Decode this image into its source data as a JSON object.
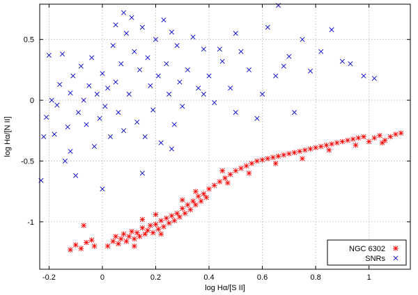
{
  "chart_data": {
    "type": "scatter",
    "xlabel": "log Hα/[S II]",
    "ylabel": "log Hα/[N II]",
    "xlim": [
      -0.235,
      1.155
    ],
    "ylim": [
      -1.39,
      0.79
    ],
    "x_ticks": [
      -0.2,
      0,
      0.2,
      0.4,
      0.6,
      0.8,
      1
    ],
    "x_tick_labels": [
      "-0.2",
      "0",
      "0.2",
      "0.4",
      "0.6",
      "0.8",
      "1"
    ],
    "y_ticks": [
      0.5,
      0,
      -0.5,
      -1
    ],
    "y_tick_labels": [
      "0.5",
      "0",
      "-0.5",
      "-1"
    ],
    "grid": true,
    "legend_position": "bottom-right",
    "series": [
      {
        "name": "NGC 6302",
        "marker": "asterisk",
        "color": "#ff0000",
        "points": [
          [
            -0.12,
            -1.23
          ],
          [
            -0.1,
            -1.19
          ],
          [
            -0.08,
            -1.22
          ],
          [
            -0.06,
            -1.17
          ],
          [
            -0.04,
            -1.15
          ],
          [
            -0.03,
            -1.2
          ],
          [
            -0.07,
            -1.03
          ],
          [
            0.02,
            -1.2
          ],
          [
            0.04,
            -1.16
          ],
          [
            0.05,
            -1.12
          ],
          [
            0.06,
            -1.18
          ],
          [
            0.07,
            -1.14
          ],
          [
            0.08,
            -1.1
          ],
          [
            0.09,
            -1.16
          ],
          [
            0.1,
            -1.12
          ],
          [
            0.11,
            -1.08
          ],
          [
            0.12,
            -1.14
          ],
          [
            0.13,
            -1.09
          ],
          [
            0.14,
            -1.12
          ],
          [
            0.15,
            -1.05
          ],
          [
            0.16,
            -1.1
          ],
          [
            0.17,
            -1.07
          ],
          [
            0.18,
            -1.03
          ],
          [
            0.19,
            -1.09
          ],
          [
            0.2,
            -1.02
          ],
          [
            0.21,
            -1.06
          ],
          [
            0.22,
            -0.99
          ],
          [
            0.23,
            -1.04
          ],
          [
            0.24,
            -0.97
          ],
          [
            0.25,
            -1.01
          ],
          [
            0.26,
            -0.95
          ],
          [
            0.27,
            -0.99
          ],
          [
            0.28,
            -0.93
          ],
          [
            0.29,
            -0.96
          ],
          [
            0.3,
            -0.89
          ],
          [
            0.31,
            -0.93
          ],
          [
            0.32,
            -0.86
          ],
          [
            0.33,
            -0.9
          ],
          [
            0.34,
            -0.83
          ],
          [
            0.35,
            -0.86
          ],
          [
            0.36,
            -0.79
          ],
          [
            0.37,
            -0.83
          ],
          [
            0.38,
            -0.77
          ],
          [
            0.39,
            -0.8
          ],
          [
            0.4,
            -0.73
          ],
          [
            0.42,
            -0.7
          ],
          [
            0.44,
            -0.67
          ],
          [
            0.46,
            -0.64
          ],
          [
            0.48,
            -0.61
          ],
          [
            0.5,
            -0.58
          ],
          [
            0.52,
            -0.56
          ],
          [
            0.54,
            -0.54
          ],
          [
            0.56,
            -0.52
          ],
          [
            0.58,
            -0.5
          ],
          [
            0.6,
            -0.49
          ],
          [
            0.62,
            -0.48
          ],
          [
            0.64,
            -0.47
          ],
          [
            0.66,
            -0.46
          ],
          [
            0.68,
            -0.45
          ],
          [
            0.7,
            -0.44
          ],
          [
            0.72,
            -0.43
          ],
          [
            0.74,
            -0.42
          ],
          [
            0.76,
            -0.41
          ],
          [
            0.78,
            -0.4
          ],
          [
            0.8,
            -0.39
          ],
          [
            0.82,
            -0.38
          ],
          [
            0.84,
            -0.37
          ],
          [
            0.86,
            -0.36
          ],
          [
            0.88,
            -0.35
          ],
          [
            0.9,
            -0.34
          ],
          [
            0.92,
            -0.33
          ],
          [
            0.94,
            -0.32
          ],
          [
            0.96,
            -0.31
          ],
          [
            0.98,
            -0.3
          ],
          [
            1.0,
            -0.34
          ],
          [
            1.02,
            -0.31
          ],
          [
            1.04,
            -0.29
          ],
          [
            1.06,
            -0.33
          ],
          [
            1.08,
            -0.3
          ],
          [
            1.1,
            -0.28
          ],
          [
            1.12,
            -0.27
          ],
          [
            0.47,
            -0.68
          ],
          [
            0.3,
            -0.82
          ],
          [
            0.22,
            -1.1
          ],
          [
            0.2,
            -0.94
          ],
          [
            0.15,
            -0.98
          ],
          [
            0.35,
            -0.75
          ],
          [
            0.45,
            -0.58
          ],
          [
            0.55,
            -0.6
          ],
          [
            0.65,
            -0.52
          ],
          [
            0.75,
            -0.48
          ],
          [
            0.85,
            -0.41
          ],
          [
            0.95,
            -0.37
          ],
          [
            1.05,
            -0.35
          ],
          [
            0.12,
            -1.2
          ]
        ]
      },
      {
        "name": "SNRs",
        "marker": "x",
        "color": "#0000cc",
        "points": [
          [
            -0.23,
            -0.66
          ],
          [
            -0.22,
            -0.3
          ],
          [
            -0.21,
            -0.14
          ],
          [
            -0.2,
            0.37
          ],
          [
            -0.19,
            0.0
          ],
          [
            -0.18,
            -0.28
          ],
          [
            -0.17,
            -0.04
          ],
          [
            -0.16,
            0.13
          ],
          [
            -0.15,
            0.38
          ],
          [
            -0.14,
            -0.5
          ],
          [
            -0.13,
            -0.22
          ],
          [
            -0.12,
            0.06
          ],
          [
            -0.11,
            0.2
          ],
          [
            -0.1,
            -0.62
          ],
          [
            -0.09,
            -0.1
          ],
          [
            -0.08,
            0.28
          ],
          [
            -0.07,
            0.0
          ],
          [
            -0.06,
            -0.2
          ],
          [
            -0.05,
            0.12
          ],
          [
            -0.04,
            0.35
          ],
          [
            -0.03,
            -0.38
          ],
          [
            -0.02,
            0.05
          ],
          [
            -0.01,
            -0.15
          ],
          [
            0.0,
            0.22
          ],
          [
            0.01,
            -0.05
          ],
          [
            0.02,
            0.1
          ],
          [
            0.03,
            -0.3
          ],
          [
            0.04,
            0.45
          ],
          [
            0.05,
            0.15
          ],
          [
            0.06,
            -0.1
          ],
          [
            0.07,
            0.3
          ],
          [
            0.08,
            -0.25
          ],
          [
            0.09,
            0.55
          ],
          [
            0.1,
            0.05
          ],
          [
            0.11,
            0.68
          ],
          [
            0.12,
            0.4
          ],
          [
            0.13,
            -0.18
          ],
          [
            0.14,
            0.25
          ],
          [
            0.15,
            0.6
          ],
          [
            0.16,
            -0.3
          ],
          [
            0.17,
            0.35
          ],
          [
            0.18,
            0.12
          ],
          [
            0.19,
            -0.08
          ],
          [
            0.2,
            0.5
          ],
          [
            0.21,
            0.2
          ],
          [
            0.22,
            -0.35
          ],
          [
            0.23,
            0.66
          ],
          [
            0.24,
            0.3
          ],
          [
            0.25,
            0.05
          ],
          [
            0.26,
            0.56
          ],
          [
            0.27,
            -0.2
          ],
          [
            0.28,
            0.45
          ],
          [
            0.29,
            0.15
          ],
          [
            0.3,
            -0.05
          ],
          [
            0.32,
            0.25
          ],
          [
            0.34,
            0.52
          ],
          [
            0.36,
            0.1
          ],
          [
            0.38,
            0.42
          ],
          [
            0.4,
            0.2
          ],
          [
            0.42,
            -0.02
          ],
          [
            0.45,
            0.32
          ],
          [
            0.48,
            0.1
          ],
          [
            0.5,
            -0.1
          ],
          [
            0.52,
            0.4
          ],
          [
            0.55,
            0.25
          ],
          [
            0.58,
            -0.15
          ],
          [
            0.6,
            0.05
          ],
          [
            0.62,
            0.6
          ],
          [
            0.65,
            0.2
          ],
          [
            0.68,
            0.28
          ],
          [
            0.7,
            0.36
          ],
          [
            0.72,
            -0.1
          ],
          [
            0.75,
            0.5
          ],
          [
            0.78,
            0.24
          ],
          [
            0.82,
            0.4
          ],
          [
            0.86,
            0.58
          ],
          [
            0.9,
            0.32
          ],
          [
            0.93,
            0.3
          ],
          [
            0.98,
            0.2
          ],
          [
            1.02,
            0.18
          ],
          [
            0.08,
            0.72
          ],
          [
            0.05,
            0.62
          ],
          [
            -0.12,
            -0.42
          ],
          [
            0.0,
            -0.73
          ],
          [
            0.5,
            0.55
          ],
          [
            0.44,
            0.42
          ],
          [
            0.38,
            0.05
          ],
          [
            0.26,
            -0.4
          ],
          [
            0.15,
            -0.6
          ],
          [
            0.66,
            0.78
          ]
        ]
      }
    ]
  }
}
